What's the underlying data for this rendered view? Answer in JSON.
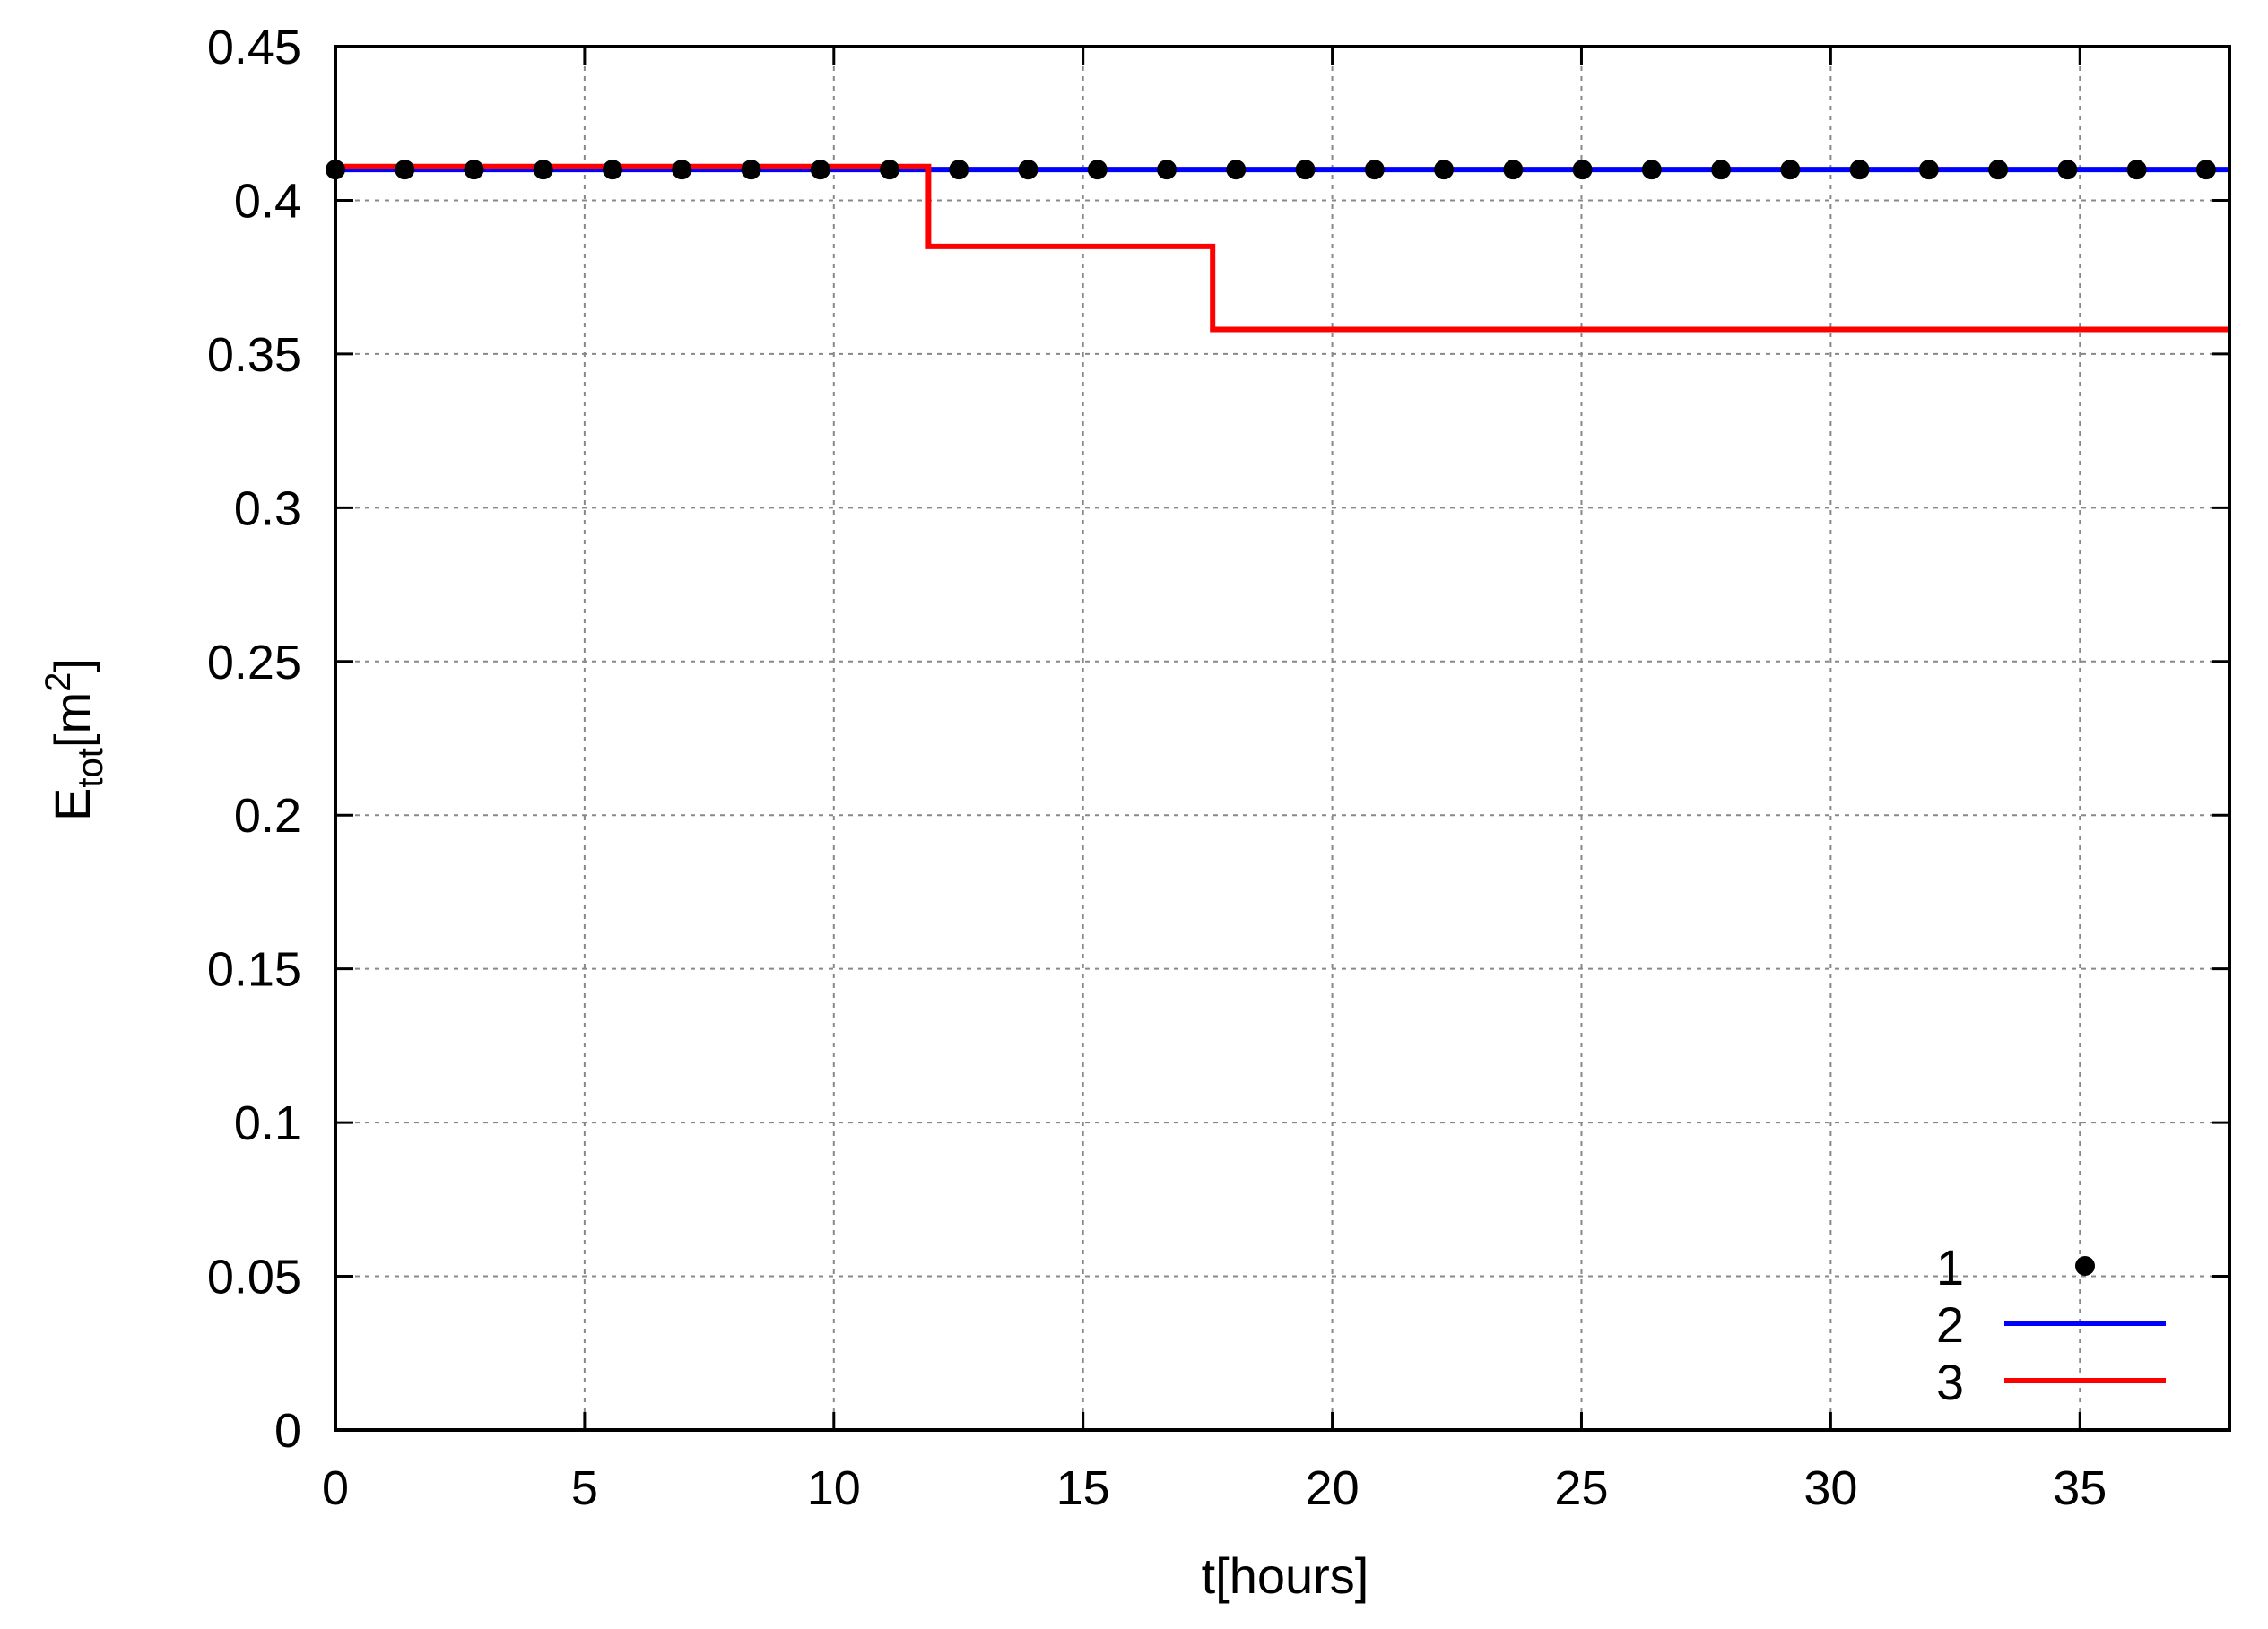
{
  "chart_data": {
    "type": "line",
    "xlabel": "t[hours]",
    "ylabel": {
      "main": "E",
      "sub": "tot",
      "unit_open": "[m",
      "unit_sup": "2",
      "unit_close": "]"
    },
    "xlim": [
      0,
      38
    ],
    "ylim": [
      0,
      0.45
    ],
    "xticks": [
      0,
      5,
      10,
      15,
      20,
      25,
      30,
      35
    ],
    "xtick_labels": [
      "0",
      "5",
      "10",
      "15",
      "20",
      "25",
      "30",
      "35"
    ],
    "yticks": [
      0,
      0.05,
      0.1,
      0.15,
      0.2,
      0.25,
      0.3,
      0.35,
      0.4,
      0.45
    ],
    "ytick_labels": [
      "0",
      "0.05",
      "0.1",
      "0.15",
      "0.2",
      "0.25",
      "0.3",
      "0.35",
      "0.4",
      "0.45"
    ],
    "grid": true,
    "legend_position": "bottom-right",
    "series": [
      {
        "name": "1",
        "style": "points",
        "color": "#000000",
        "x": [
          0,
          1.39,
          2.78,
          4.17,
          5.56,
          6.95,
          8.34,
          9.73,
          11.12,
          12.51,
          13.9,
          15.29,
          16.68,
          18.07,
          19.46,
          20.85,
          22.24,
          23.63,
          25.02,
          26.41,
          27.8,
          29.19,
          30.58,
          31.97,
          33.36,
          34.75,
          36.14,
          37.53
        ],
        "y": [
          0.41,
          0.41,
          0.41,
          0.41,
          0.41,
          0.41,
          0.41,
          0.41,
          0.41,
          0.41,
          0.41,
          0.41,
          0.41,
          0.41,
          0.41,
          0.41,
          0.41,
          0.41,
          0.41,
          0.41,
          0.41,
          0.41,
          0.41,
          0.41,
          0.41,
          0.41,
          0.41,
          0.41
        ]
      },
      {
        "name": "2",
        "style": "line",
        "color": "#0000ff",
        "x": [
          0,
          38
        ],
        "y": [
          0.41,
          0.41
        ]
      },
      {
        "name": "3",
        "style": "step",
        "color": "#ff0000",
        "x": [
          0,
          11.9,
          11.9,
          17.6,
          17.6,
          38
        ],
        "y": [
          0.411,
          0.411,
          0.385,
          0.385,
          0.358,
          0.358
        ]
      }
    ]
  }
}
